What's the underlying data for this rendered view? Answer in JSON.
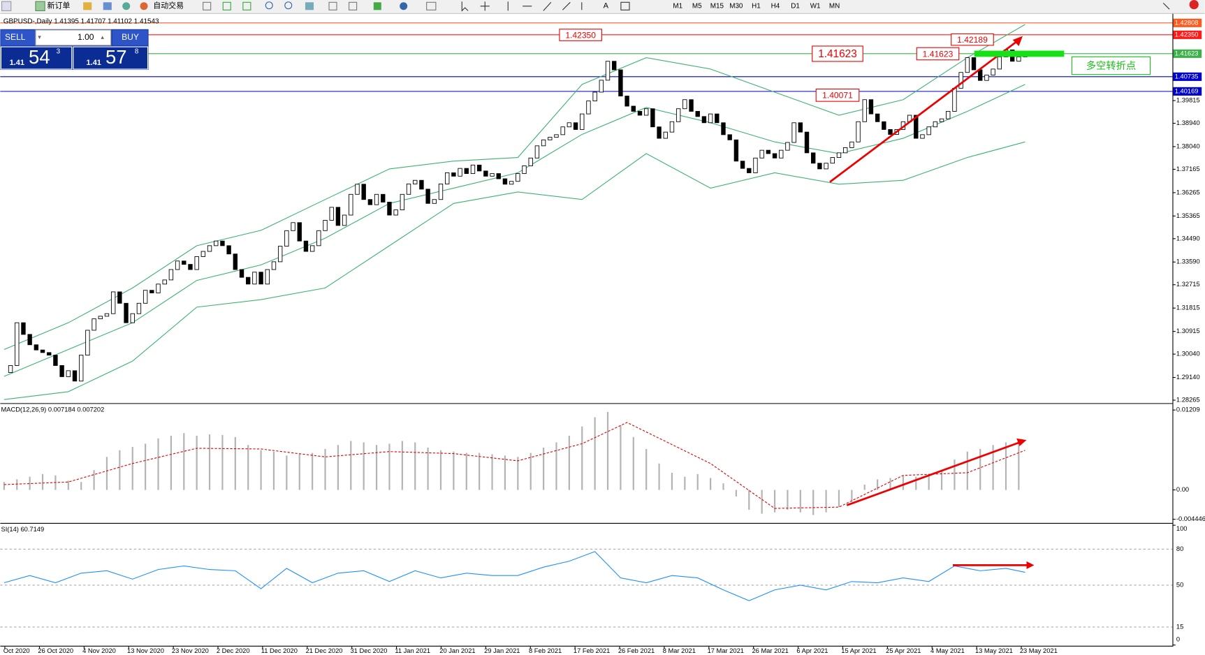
{
  "toolbar": {
    "new_order": "新订单",
    "auto_trade": "自动交易",
    "timeframes": [
      "M1",
      "M5",
      "M15",
      "M30",
      "H1",
      "H4",
      "D1",
      "W1",
      "MN"
    ]
  },
  "trade_panel": {
    "sell": "SELL",
    "buy": "BUY",
    "lot": "1.00",
    "sell_price_big": "1.41",
    "sell_pips": "54",
    "sell_frac": "3",
    "buy_price_big": "1.41",
    "buy_pips": "57",
    "buy_frac": "8"
  },
  "chart": {
    "header": "GBPUSD-,Daily  1.41395 1.41707 1.41102 1.41543",
    "ylim": [
      1.2815,
      1.431
    ],
    "yticks": [
      1.39815,
      {
        "value": 1.3894,
        "label": "1.38940"
      },
      {
        "value": 1.3804,
        "label": "1.38040"
      },
      1.37165,
      1.36265,
      1.35365,
      {
        "value": 1.3449,
        "label": "1.34490"
      },
      {
        "value": 1.3359,
        "label": "1.33590"
      },
      1.32715,
      1.31815,
      1.30915,
      {
        "value": 1.3004,
        "label": "1.30040"
      },
      {
        "value": 1.2914,
        "label": "1.29140"
      },
      1.28265
    ],
    "levels": [
      {
        "value": 1.42808,
        "color": "#ff5a1e"
      },
      {
        "value": 1.4235,
        "label": "1.42350",
        "color": "#ff1a1a"
      },
      {
        "value": 1.41623,
        "color": "#3cb04a"
      },
      {
        "value": 1.40735,
        "color": "#0000cc"
      },
      {
        "value": 1.40169,
        "color": "#0000cc"
      }
    ],
    "closes": [
      1.2933,
      1.296,
      1.3125,
      1.308,
      1.304,
      1.302,
      1.301,
      1.3,
      1.296,
      1.2917,
      1.294,
      1.29,
      1.3,
      1.3096,
      1.314,
      1.315,
      1.316,
      1.3244,
      1.32,
      1.3125,
      1.316,
      1.32,
      1.325,
      1.324,
      1.3274,
      1.329,
      1.333,
      1.3363,
      1.335,
      1.333,
      1.338,
      1.34,
      1.3422,
      1.344,
      1.3422,
      1.339,
      1.333,
      1.33,
      1.3274,
      1.332,
      1.3274,
      1.333,
      1.336,
      1.342,
      1.348,
      1.3511,
      1.344,
      1.34,
      1.3422,
      1.348,
      1.352,
      1.357,
      1.35,
      1.354,
      1.362,
      1.3659,
      1.36,
      1.358,
      1.362,
      1.359,
      1.354,
      1.356,
      1.362,
      1.366,
      1.3674,
      1.364,
      1.3585,
      1.36,
      1.366,
      1.3703,
      1.369,
      1.372,
      1.37,
      1.3733,
      1.371,
      1.369,
      1.37,
      1.368,
      1.3659,
      1.367,
      1.37,
      1.373,
      1.376,
      1.3807,
      1.383,
      1.384,
      1.385,
      1.388,
      1.3896,
      1.387,
      1.393,
      1.398,
      1.4014,
      1.406,
      1.4133,
      1.41,
      1.3999,
      1.396,
      1.394,
      1.3925,
      1.395,
      1.388,
      1.3836,
      1.386,
      1.39,
      1.395,
      1.3985,
      1.394,
      1.392,
      1.3896,
      1.393,
      1.3896,
      1.385,
      1.383,
      1.3748,
      1.372,
      1.3703,
      1.376,
      1.379,
      1.3777,
      1.376,
      1.379,
      1.382,
      1.3896,
      1.386,
      1.378,
      1.374,
      1.3718,
      1.374,
      1.3762,
      1.378,
      1.38,
      1.3822,
      1.39,
      1.3985,
      1.393,
      1.39,
      1.387,
      1.3851,
      1.387,
      1.39,
      1.3925,
      1.3836,
      1.385,
      1.388,
      1.39,
      1.3911,
      1.394,
      1.4029,
      1.409,
      1.4147,
      1.41,
      1.4059,
      1.408,
      1.4103,
      1.415,
      1.4177,
      1.4133,
      1.415,
      1.4154
    ],
    "bands": {
      "color": "#3cb371",
      "x": [
        0,
        10,
        20,
        30,
        40,
        50,
        60,
        70,
        80,
        90,
        100,
        110,
        120,
        130,
        140,
        150,
        159
      ],
      "upper": [
        1.3022,
        1.3125,
        1.3259,
        1.3422,
        1.3481,
        1.36,
        1.3718,
        1.3748,
        1.3762,
        1.4044,
        1.4147,
        1.4103,
        1.4014,
        1.3925,
        1.3985,
        1.4147,
        1.4275
      ],
      "middle": [
        1.2918,
        1.3022,
        1.3125,
        1.3288,
        1.3348,
        1.3451,
        1.3585,
        1.3644,
        1.3703,
        1.3851,
        1.3955,
        1.3896,
        1.3822,
        1.3777,
        1.3836,
        1.394,
        1.4044
      ],
      "lower": [
        1.2829,
        1.2859,
        1.2977,
        1.3185,
        1.3214,
        1.3259,
        1.3422,
        1.3585,
        1.3629,
        1.36,
        1.3777,
        1.3644,
        1.3703,
        1.3659,
        1.3674,
        1.3762,
        1.3822
      ]
    },
    "annotations": [
      "1.42350",
      "1.41623",
      "1.40071",
      "1.41623",
      "1.42189",
      "多空转折点"
    ]
  },
  "macd": {
    "label": "MACD(12,26,9) 0.007184 0.007202",
    "ylim": [
      -0.00488,
      0.0129
    ],
    "yticks": [
      0.01209,
      {
        "value": 0,
        "label": "0.00"
      },
      -0.004446
    ],
    "hist_color": "#b4b4b4",
    "hist": [
      0.0012,
      0.0016,
      0.002,
      0.0024,
      0.0022,
      0.0014,
      0.0012,
      0.003,
      0.005,
      0.006,
      0.0065,
      0.007,
      0.0078,
      0.0082,
      0.0086,
      0.0082,
      0.0084,
      0.0083,
      0.008,
      0.0068,
      0.006,
      0.0058,
      0.0052,
      0.0054,
      0.0056,
      0.0062,
      0.0068,
      0.0074,
      0.0072,
      0.0068,
      0.007,
      0.0074,
      0.0072,
      0.0064,
      0.006,
      0.0058,
      0.0056,
      0.0056,
      0.0054,
      0.0052,
      0.005,
      0.0056,
      0.0064,
      0.0072,
      0.0082,
      0.0096,
      0.011,
      0.0118,
      0.0098,
      0.008,
      0.0062,
      0.004,
      0.0026,
      0.002,
      0.0024,
      0.0018,
      0.001,
      -0.001,
      -0.003,
      -0.0036,
      -0.0034,
      -0.003,
      -0.0034,
      -0.0038,
      -0.0034,
      -0.0026,
      -0.0018,
      0.0008,
      0.0016,
      0.0018,
      0.0022,
      0.002,
      0.0022,
      0.003,
      0.0046,
      0.0058,
      0.0062,
      0.0068,
      0.0072,
      0.0076
    ],
    "signal_color": "#e00000",
    "signal_x": [
      0,
      10,
      20,
      30,
      40,
      50,
      60,
      70,
      80,
      90,
      97,
      110,
      120,
      130,
      140,
      150,
      159
    ],
    "signal": [
      0.0008,
      0.0012,
      0.004,
      0.0063,
      0.0062,
      0.005,
      0.0058,
      0.0055,
      0.0044,
      0.007,
      0.0102,
      0.004,
      -0.0028,
      -0.0026,
      0.0022,
      0.0026,
      0.006
    ]
  },
  "rsi": {
    "label": "SI(14) 60.7149",
    "ylim": [
      0,
      100
    ],
    "yticks": [
      100,
      80,
      50,
      15,
      0
    ],
    "color": "#1e90ff",
    "x": [
      0,
      4,
      8,
      12,
      16,
      20,
      24,
      28,
      32,
      36,
      40,
      44,
      48,
      52,
      56,
      60,
      64,
      68,
      72,
      76,
      80,
      84,
      88,
      92,
      96,
      100,
      104,
      108,
      112,
      116,
      120,
      124,
      128,
      132,
      136,
      140,
      144,
      148,
      152,
      156,
      159
    ],
    "values": [
      52,
      58,
      52,
      60,
      62,
      55,
      63,
      66,
      63,
      62,
      47,
      64,
      52,
      60,
      62,
      53,
      62,
      56,
      60,
      58,
      58,
      65,
      70,
      78,
      56,
      52,
      58,
      56,
      46,
      37,
      46,
      50,
      46,
      53,
      52,
      56,
      53,
      66,
      62,
      64,
      60.7149
    ]
  },
  "dates": [
    "Oct 2020",
    "26 Oct 2020",
    "4 Nov 2020",
    "13 Nov 2020",
    "23 Nov 2020",
    "2 Dec 2020",
    "11 Dec 2020",
    "21 Dec 2020",
    "31 Dec 2020",
    "11 Jan 2021",
    "20 Jan 2021",
    "29 Jan 2021",
    "8 Feb 2021",
    "17 Feb 2021",
    "26 Feb 2021",
    "8 Mar 2021",
    "17 Mar 2021",
    "26 Mar 2021",
    "6 Apr 2021",
    "15 Apr 2021",
    "25 Apr 2021",
    "4 May 2021",
    "13 May 2021",
    "23 May 2021"
  ]
}
